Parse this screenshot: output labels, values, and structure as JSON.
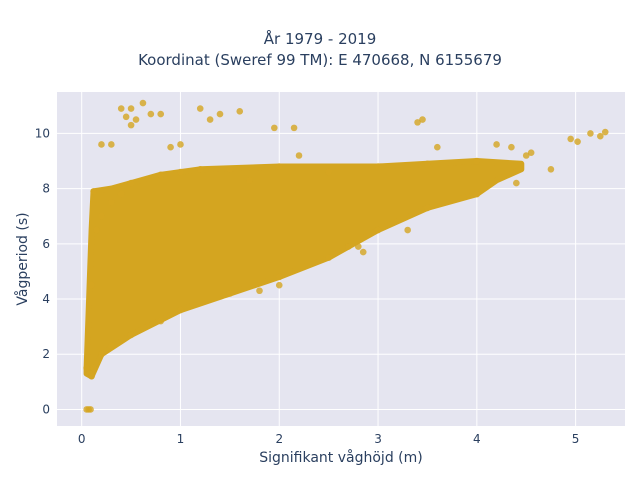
{
  "chart_data": {
    "type": "scatter",
    "title_lines": [
      "År 1979 - 2019",
      "Koordinat (Sweref 99 TM): E 470668, N 6155679"
    ],
    "xlabel": "Signifikant våghöjd (m)",
    "ylabel": "Vågperiod (s)",
    "xlim": [
      -0.25,
      5.5
    ],
    "ylim": [
      -0.6,
      11.5
    ],
    "xticks": [
      0,
      1,
      2,
      3,
      4,
      5
    ],
    "yticks": [
      0,
      2,
      4,
      6,
      8,
      10
    ],
    "grid": true,
    "legend": "none",
    "colors": {
      "marker": "#d4a520",
      "plot_bg": "#e5e5f0",
      "grid": "#ffffff"
    },
    "series": [
      {
        "points": [
          [
            0.05,
            0.0
          ],
          [
            0.07,
            0.0
          ],
          [
            0.09,
            0.0
          ],
          [
            0.05,
            1.5
          ],
          [
            0.08,
            1.3
          ],
          [
            0.1,
            1.2
          ],
          [
            0.12,
            1.5
          ],
          [
            0.1,
            4.5
          ],
          [
            0.15,
            6.5
          ],
          [
            0.12,
            7.9
          ],
          [
            0.2,
            7.0
          ],
          [
            0.3,
            7.5
          ],
          [
            0.4,
            7.8
          ],
          [
            0.5,
            8.2
          ],
          [
            0.8,
            8.5
          ],
          [
            1.0,
            8.6
          ],
          [
            1.2,
            8.7
          ],
          [
            1.5,
            8.7
          ],
          [
            2.0,
            8.8
          ],
          [
            2.5,
            8.6
          ],
          [
            3.0,
            8.8
          ],
          [
            3.5,
            8.9
          ],
          [
            4.0,
            9.0
          ],
          [
            0.2,
            2.0
          ],
          [
            0.3,
            2.3
          ],
          [
            0.5,
            2.7
          ],
          [
            0.8,
            3.2
          ],
          [
            1.0,
            3.6
          ],
          [
            1.5,
            4.2
          ],
          [
            2.0,
            4.8
          ],
          [
            2.5,
            5.5
          ],
          [
            3.0,
            6.5
          ],
          [
            3.5,
            7.3
          ],
          [
            4.0,
            7.8
          ],
          [
            4.4,
            8.2
          ],
          [
            0.2,
            9.6
          ],
          [
            0.3,
            9.6
          ],
          [
            0.4,
            10.9
          ],
          [
            0.45,
            10.6
          ],
          [
            0.5,
            10.9
          ],
          [
            0.5,
            10.3
          ],
          [
            0.55,
            10.5
          ],
          [
            0.62,
            11.1
          ],
          [
            0.7,
            10.7
          ],
          [
            0.8,
            10.7
          ],
          [
            0.9,
            9.5
          ],
          [
            1.0,
            9.6
          ],
          [
            1.2,
            10.9
          ],
          [
            1.3,
            10.5
          ],
          [
            1.4,
            10.7
          ],
          [
            1.6,
            10.8
          ],
          [
            1.95,
            10.2
          ],
          [
            2.15,
            10.2
          ],
          [
            3.4,
            10.4
          ],
          [
            3.45,
            10.5
          ],
          [
            3.6,
            9.5
          ],
          [
            4.2,
            9.6
          ],
          [
            4.35,
            9.5
          ],
          [
            4.5,
            9.2
          ],
          [
            4.55,
            9.3
          ],
          [
            4.75,
            8.7
          ],
          [
            4.95,
            9.8
          ],
          [
            5.02,
            9.7
          ],
          [
            5.15,
            10.0
          ],
          [
            5.25,
            9.9
          ],
          [
            5.3,
            10.05
          ],
          [
            1.8,
            4.3
          ],
          [
            2.0,
            4.5
          ],
          [
            2.8,
            5.9
          ],
          [
            3.3,
            6.5
          ],
          [
            2.7,
            5.9
          ],
          [
            2.85,
            5.7
          ],
          [
            1.7,
            8.3
          ],
          [
            2.2,
            9.2
          ]
        ]
      }
    ]
  }
}
